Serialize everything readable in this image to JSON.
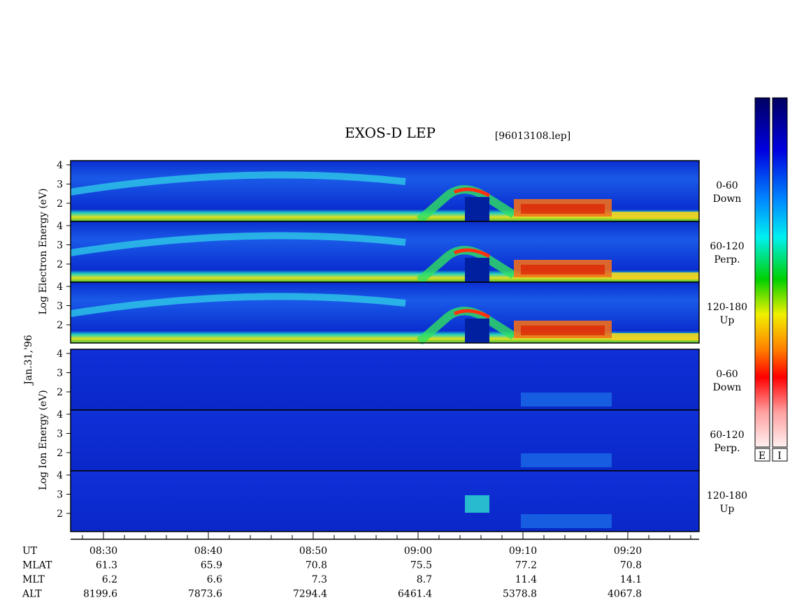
{
  "title": "EXOS-D LEP",
  "file": "[96013108.lep]",
  "date": "Jan.31,'96",
  "groups": [
    {
      "label": "Log Electron Energy (eV)",
      "panels": [
        {
          "angle": "0-60",
          "direction": "Down"
        },
        {
          "angle": "60-120",
          "direction": "Perp."
        },
        {
          "angle": "120-180",
          "direction": "Up"
        }
      ]
    },
    {
      "label": "Log Ion Energy (eV)",
      "panels": [
        {
          "angle": "0-60",
          "direction": "Down"
        },
        {
          "angle": "60-120",
          "direction": "Perp."
        },
        {
          "angle": "120-180",
          "direction": "Up"
        }
      ]
    }
  ],
  "yticks": [
    "4",
    "3",
    "2"
  ],
  "time_ticks": [
    "08:30",
    "08:40",
    "08:50",
    "09:00",
    "09:10",
    "09:20"
  ],
  "ephemeris": [
    {
      "label": "UT",
      "values": []
    },
    {
      "label": "MLAT",
      "values": [
        "61.3",
        "65.9",
        "70.8",
        "75.5",
        "77.2",
        "70.8"
      ]
    },
    {
      "label": "MLT",
      "values": [
        "6.2",
        "6.6",
        "7.3",
        "8.7",
        "11.4",
        "14.1"
      ]
    },
    {
      "label": "ALT",
      "values": [
        "8199.6",
        "7873.6",
        "7294.4",
        "6461.4",
        "5378.8",
        "4067.8"
      ]
    }
  ],
  "colorbars": [
    "E",
    "I"
  ]
}
